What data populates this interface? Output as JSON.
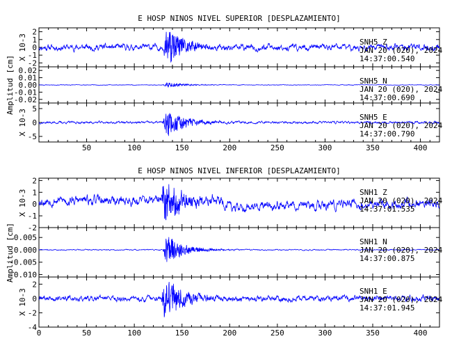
{
  "chart_data": [
    {
      "type": "line",
      "title": "E HOSP NINOS NIVEL SUPERIOR [DESPLAZAMIENTO]",
      "ylabel": "Amplitud [cm]",
      "xlim": [
        0,
        420
      ],
      "xticks": [
        "50",
        "100",
        "150",
        "200",
        "250",
        "300",
        "350",
        "400"
      ],
      "color": "#0000ff",
      "series": [
        {
          "name": "SNH5 Z",
          "label": "SNH5",
          "comp": "Z",
          "date": "JAN 20 (020), 2024",
          "time": "14:37:00.540",
          "scale_label": "X 10-3",
          "ylim": [
            -2.5,
            2.5
          ],
          "yticks": [
            "2",
            "1",
            "0",
            "-1",
            "-2"
          ],
          "baseline": 0,
          "noise": 0.55,
          "burst": 2.5,
          "burst_start": 130,
          "drift": 0,
          "seed": 11
        },
        {
          "name": "SNH5 N",
          "label": "SNH5",
          "comp": "N",
          "date": "JAN 20 (020), 2024",
          "time": "14:37:00.690",
          "scale_label": "",
          "ylim": [
            -0.025,
            0.025
          ],
          "yticks": [
            "0.02",
            "0.01",
            "0.00",
            "-0.01",
            "-0.02"
          ],
          "baseline": 0,
          "noise": 0.0006,
          "burst": 0.0035,
          "burst_start": 130,
          "drift": 0,
          "seed": 23
        },
        {
          "name": "SNH5 E",
          "label": "SNH5",
          "comp": "E",
          "date": "JAN 20 (020), 2024",
          "time": "14:37:00.790",
          "scale_label": "X 10-3",
          "ylim": [
            -7,
            7
          ],
          "yticks": [
            "5",
            "0",
            "-5"
          ],
          "baseline": 0,
          "noise": 0.6,
          "burst": 5,
          "burst_start": 130,
          "drift": 0,
          "seed": 37
        }
      ]
    },
    {
      "type": "line",
      "title": "E HOSP NINOS NIVEL INFERIOR [DESPLAZAMIENTO]",
      "ylabel": "Amplitud [cm]",
      "xlim": [
        0,
        420
      ],
      "xticks": [
        "0",
        "50",
        "100",
        "150",
        "200",
        "250",
        "300",
        "350",
        "400"
      ],
      "color": "#0000ff",
      "series": [
        {
          "name": "SNH1 Z",
          "label": "SNH1",
          "comp": "Z",
          "date": "JAN 20 (020), 2024",
          "time": "14:37:01.535",
          "scale_label": "X 10-3",
          "ylim": [
            -2,
            2.2
          ],
          "yticks": [
            "2",
            "1",
            "0",
            "-1",
            "-2"
          ],
          "baseline": 0.3,
          "noise": 0.55,
          "burst": 1.8,
          "burst_start": 128,
          "drift": -0.6,
          "seed": 53
        },
        {
          "name": "SNH1 N",
          "label": "SNH1",
          "comp": "N",
          "date": "JAN 20 (020), 2024",
          "time": "14:37:00.875",
          "scale_label": "",
          "ylim": [
            -0.011,
            0.009
          ],
          "yticks": [
            "0.005",
            "0.000",
            "-0.005",
            "-0.010"
          ],
          "baseline": 0,
          "noise": 0.0003,
          "burst": 0.006,
          "burst_start": 130,
          "drift": 0,
          "seed": 71
        },
        {
          "name": "SNH1 E",
          "label": "SNH1",
          "comp": "E",
          "date": "JAN 20 (020), 2024",
          "time": "14:37:01.945",
          "scale_label": "X 10-3",
          "ylim": [
            -4,
            3
          ],
          "yticks": [
            "2",
            "0",
            "-2",
            "-4"
          ],
          "baseline": 0,
          "noise": 0.55,
          "burst": 2.8,
          "burst_start": 128,
          "drift": 0,
          "seed": 89
        }
      ]
    }
  ]
}
